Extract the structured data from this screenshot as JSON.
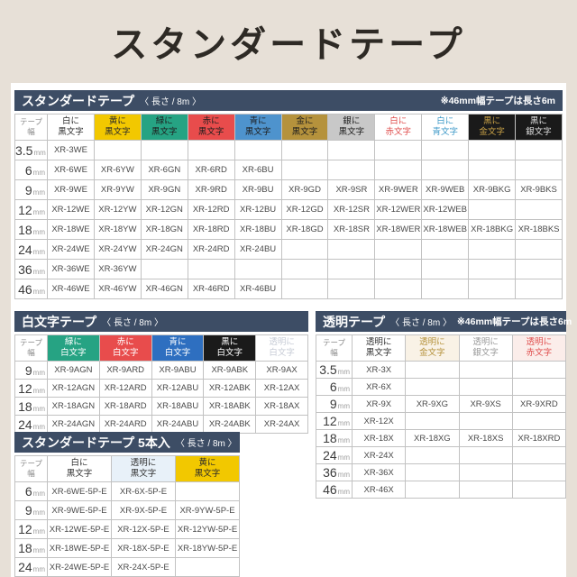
{
  "page": {
    "title": "スタンダードテープ"
  },
  "theme": {
    "page_bg": "#e7e0d7",
    "bar_bg": "#3d4d65",
    "grid_line": "#c2c2c2",
    "yellow": "#f2c800",
    "green": "#26a383",
    "red": "#e84c4c",
    "blue": "#4e93cd",
    "gold": "#b5923c",
    "silver": "#c8c8c8",
    "black": "#1a1a1a",
    "red_text": "#e0504f",
    "blue_text": "#3f9ac8",
    "gold_text": "#c8a147"
  },
  "tables": [
    {
      "name": "standard-tape",
      "title": "スタンダードテープ",
      "length": "〈 長さ / 8m 〉",
      "note": "※46mm幅テープは長さ6m",
      "width_header": [
        "テープ",
        "幅"
      ],
      "columns": [
        {
          "label": [
            "白に",
            "黒文字"
          ],
          "bg": "#ffffff",
          "fg": "#333333"
        },
        {
          "label": [
            "黄に",
            "黒文字"
          ],
          "bg": "#f2c800",
          "fg": "#2a2a2a"
        },
        {
          "label": [
            "緑に",
            "黒文字"
          ],
          "bg": "#26a383",
          "fg": "#1e1e1e"
        },
        {
          "label": [
            "赤に",
            "黒文字"
          ],
          "bg": "#e84c4c",
          "fg": "#1e1e1e"
        },
        {
          "label": [
            "青に",
            "黒文字"
          ],
          "bg": "#4e93cd",
          "fg": "#1e1e1e"
        },
        {
          "label": [
            "金に",
            "黒文字"
          ],
          "bg": "#b5923c",
          "fg": "#1e1e1e"
        },
        {
          "label": [
            "銀に",
            "黒文字"
          ],
          "bg": "#c8c8c8",
          "fg": "#1e1e1e"
        },
        {
          "label": [
            "白に",
            "赤文字"
          ],
          "bg": "#ffffff",
          "fg": "#e0504f"
        },
        {
          "label": [
            "白に",
            "青文字"
          ],
          "bg": "#ffffff",
          "fg": "#3f9ac8"
        },
        {
          "label": [
            "黒に",
            "金文字"
          ],
          "bg": "#1a1a1a",
          "fg": "#c8a147"
        },
        {
          "label": [
            "黒に",
            "銀文字"
          ],
          "bg": "#1a1a1a",
          "fg": "#dcdcdc"
        }
      ],
      "rows": [
        {
          "width": "3.5",
          "unit": "mm",
          "cells": [
            "XR-3WE",
            "",
            "",
            "",
            "",
            "",
            "",
            "",
            "",
            "",
            ""
          ]
        },
        {
          "width": "6",
          "unit": "mm",
          "cells": [
            "XR-6WE",
            "XR-6YW",
            "XR-6GN",
            "XR-6RD",
            "XR-6BU",
            "",
            "",
            "",
            "",
            "",
            ""
          ]
        },
        {
          "width": "9",
          "unit": "mm",
          "cells": [
            "XR-9WE",
            "XR-9YW",
            "XR-9GN",
            "XR-9RD",
            "XR-9BU",
            "XR-9GD",
            "XR-9SR",
            "XR-9WER",
            "XR-9WEB",
            "XR-9BKG",
            "XR-9BKS"
          ]
        },
        {
          "width": "12",
          "unit": "mm",
          "cells": [
            "XR-12WE",
            "XR-12YW",
            "XR-12GN",
            "XR-12RD",
            "XR-12BU",
            "XR-12GD",
            "XR-12SR",
            "XR-12WER",
            "XR-12WEB",
            "",
            ""
          ]
        },
        {
          "width": "18",
          "unit": "mm",
          "cells": [
            "XR-18WE",
            "XR-18YW",
            "XR-18GN",
            "XR-18RD",
            "XR-18BU",
            "XR-18GD",
            "XR-18SR",
            "XR-18WER",
            "XR-18WEB",
            "XR-18BKG",
            "XR-18BKS"
          ]
        },
        {
          "width": "24",
          "unit": "mm",
          "cells": [
            "XR-24WE",
            "XR-24YW",
            "XR-24GN",
            "XR-24RD",
            "XR-24BU",
            "",
            "",
            "",
            "",
            "",
            ""
          ]
        },
        {
          "width": "36",
          "unit": "mm",
          "cells": [
            "XR-36WE",
            "XR-36YW",
            "",
            "",
            "",
            "",
            "",
            "",
            "",
            "",
            ""
          ]
        },
        {
          "width": "46",
          "unit": "mm",
          "cells": [
            "XR-46WE",
            "XR-46YW",
            "XR-46GN",
            "XR-46RD",
            "XR-46BU",
            "",
            "",
            "",
            "",
            "",
            ""
          ]
        }
      ]
    },
    {
      "name": "white-text-tape",
      "title": "白文字テープ",
      "length": "〈 長さ / 8m 〉",
      "note": "",
      "width_header": [
        "テープ",
        "幅"
      ],
      "columns": [
        {
          "label": [
            "緑に",
            "白文字"
          ],
          "bg": "#26a383",
          "fg": "#ffffff"
        },
        {
          "label": [
            "赤に",
            "白文字"
          ],
          "bg": "#e84c4c",
          "fg": "#ffffff"
        },
        {
          "label": [
            "青に",
            "白文字"
          ],
          "bg": "#2e6fc0",
          "fg": "#ffffff"
        },
        {
          "label": [
            "黒に",
            "白文字"
          ],
          "bg": "#1a1a1a",
          "fg": "#ffffff"
        },
        {
          "label": [
            "透明に",
            "白文字"
          ],
          "bg": "#ffffff",
          "fg": "#c7ccd6"
        }
      ],
      "rows": [
        {
          "width": "9",
          "unit": "mm",
          "cells": [
            "XR-9AGN",
            "XR-9ARD",
            "XR-9ABU",
            "XR-9ABK",
            "XR-9AX"
          ]
        },
        {
          "width": "12",
          "unit": "mm",
          "cells": [
            "XR-12AGN",
            "XR-12ARD",
            "XR-12ABU",
            "XR-12ABK",
            "XR-12AX"
          ]
        },
        {
          "width": "18",
          "unit": "mm",
          "cells": [
            "XR-18AGN",
            "XR-18ARD",
            "XR-18ABU",
            "XR-18ABK",
            "XR-18AX"
          ]
        },
        {
          "width": "24",
          "unit": "mm",
          "cells": [
            "XR-24AGN",
            "XR-24ARD",
            "XR-24ABU",
            "XR-24ABK",
            "XR-24AX"
          ]
        }
      ]
    },
    {
      "name": "transparent-tape",
      "title": "透明テープ",
      "length": "〈 長さ / 8m 〉",
      "note": "※46mm幅テープは長さ6m",
      "width_header": [
        "テープ",
        "幅"
      ],
      "columns": [
        {
          "label": [
            "透明に",
            "黒文字"
          ],
          "bg": "#ffffff",
          "fg": "#333333"
        },
        {
          "label": [
            "透明に",
            "金文字"
          ],
          "bg": "#f9f2e6",
          "fg": "#b5923c"
        },
        {
          "label": [
            "透明に",
            "銀文字"
          ],
          "bg": "#ffffff",
          "fg": "#9b9b9b"
        },
        {
          "label": [
            "透明に",
            "赤文字"
          ],
          "bg": "#fbedea",
          "fg": "#e0504f"
        }
      ],
      "rows": [
        {
          "width": "3.5",
          "unit": "mm",
          "cells": [
            "XR-3X",
            "",
            "",
            ""
          ]
        },
        {
          "width": "6",
          "unit": "mm",
          "cells": [
            "XR-6X",
            "",
            "",
            ""
          ]
        },
        {
          "width": "9",
          "unit": "mm",
          "cells": [
            "XR-9X",
            "XR-9XG",
            "XR-9XS",
            "XR-9XRD"
          ]
        },
        {
          "width": "12",
          "unit": "mm",
          "cells": [
            "XR-12X",
            "",
            "",
            ""
          ]
        },
        {
          "width": "18",
          "unit": "mm",
          "cells": [
            "XR-18X",
            "XR-18XG",
            "XR-18XS",
            "XR-18XRD"
          ]
        },
        {
          "width": "24",
          "unit": "mm",
          "cells": [
            "XR-24X",
            "",
            "",
            ""
          ]
        },
        {
          "width": "36",
          "unit": "mm",
          "cells": [
            "XR-36X",
            "",
            "",
            ""
          ]
        },
        {
          "width": "46",
          "unit": "mm",
          "cells": [
            "XR-46X",
            "",
            "",
            ""
          ]
        }
      ]
    },
    {
      "name": "standard-tape-5pack",
      "title": "スタンダードテープ 5本入",
      "length": "〈 長さ / 8m 〉",
      "note": "",
      "width_header": [
        "テープ",
        "幅"
      ],
      "columns": [
        {
          "label": [
            "白に",
            "黒文字"
          ],
          "bg": "#ffffff",
          "fg": "#333333"
        },
        {
          "label": [
            "透明に",
            "黒文字"
          ],
          "bg": "#e8f1f9",
          "fg": "#333333"
        },
        {
          "label": [
            "黄に",
            "黒文字"
          ],
          "bg": "#f2c800",
          "fg": "#2a2a2a"
        }
      ],
      "rows": [
        {
          "width": "6",
          "unit": "mm",
          "cells": [
            "XR-6WE-5P-E",
            "XR-6X-5P-E",
            ""
          ]
        },
        {
          "width": "9",
          "unit": "mm",
          "cells": [
            "XR-9WE-5P-E",
            "XR-9X-5P-E",
            "XR-9YW-5P-E"
          ]
        },
        {
          "width": "12",
          "unit": "mm",
          "cells": [
            "XR-12WE-5P-E",
            "XR-12X-5P-E",
            "XR-12YW-5P-E"
          ]
        },
        {
          "width": "18",
          "unit": "mm",
          "cells": [
            "XR-18WE-5P-E",
            "XR-18X-5P-E",
            "XR-18YW-5P-E"
          ]
        },
        {
          "width": "24",
          "unit": "mm",
          "cells": [
            "XR-24WE-5P-E",
            "XR-24X-5P-E",
            ""
          ]
        }
      ]
    }
  ]
}
